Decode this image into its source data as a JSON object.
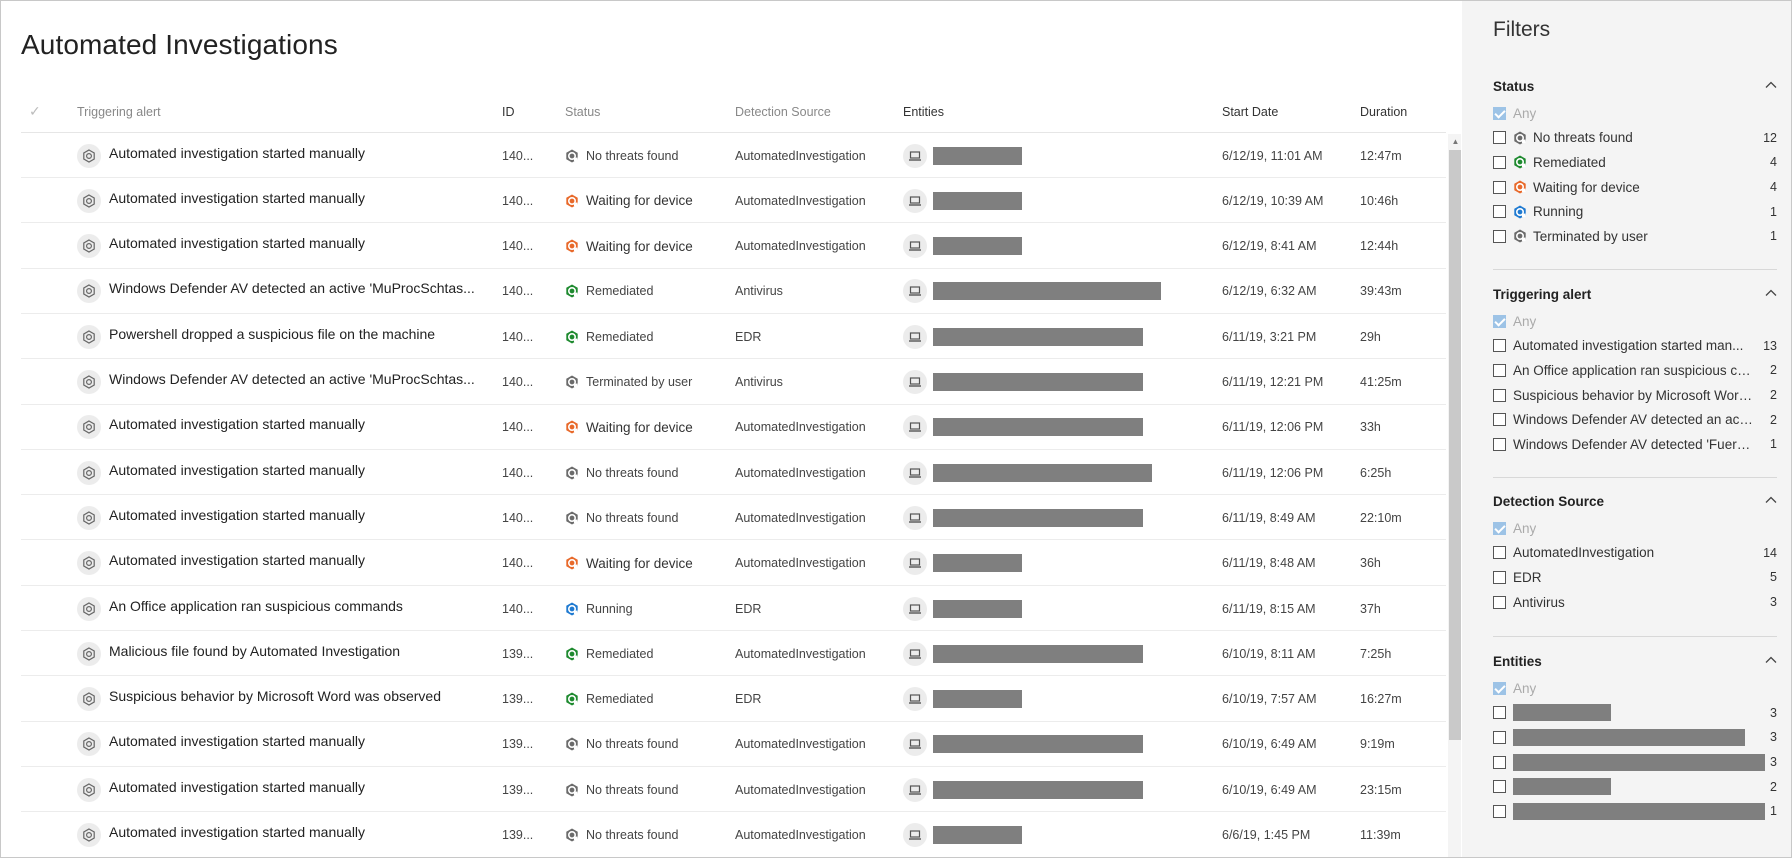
{
  "page": {
    "title": "Automated Investigations"
  },
  "colors": {
    "no_threats": "#6b6b6b",
    "waiting": "#e8692a",
    "remediated": "#1e8a2f",
    "running": "#1f7ad1",
    "terminated": "#6b6b6b",
    "redaction": "#7f7f7f"
  },
  "table": {
    "columns": {
      "alert": "Triggering alert",
      "id": "ID",
      "status": "Status",
      "source": "Detection Source",
      "entities": "Entities",
      "start": "Start Date",
      "duration": "Duration"
    },
    "rows": [
      {
        "alert": "Automated investigation started manually",
        "id": "140...",
        "status": "No threats found",
        "status_icon": "no-threats",
        "source": "AutomatedInvestigation",
        "entity_redacted_fraction": 0.39,
        "start": "6/12/19, 11:01 AM",
        "duration": "12:47m"
      },
      {
        "alert": "Automated investigation started manually",
        "id": "140...",
        "status": "Waiting for device",
        "status_icon": "waiting",
        "source": "AutomatedInvestigation",
        "entity_redacted_fraction": 0.39,
        "start": "6/12/19, 10:39 AM",
        "duration": "10:46h"
      },
      {
        "alert": "Automated investigation started manually",
        "id": "140...",
        "status": "Waiting for device",
        "status_icon": "waiting",
        "source": "AutomatedInvestigation",
        "entity_redacted_fraction": 0.39,
        "start": "6/12/19, 8:41 AM",
        "duration": "12:44h"
      },
      {
        "alert": "Windows Defender AV detected an active 'MuProcSchtas...",
        "id": "140...",
        "status": "Remediated",
        "status_icon": "remediated",
        "source": "Antivirus",
        "entity_redacted_fraction": 1.0,
        "start": "6/12/19, 6:32 AM",
        "duration": "39:43m"
      },
      {
        "alert": "Powershell dropped a suspicious file on the machine",
        "id": "140...",
        "status": "Remediated",
        "status_icon": "remediated",
        "source": "EDR",
        "entity_redacted_fraction": 0.92,
        "start": "6/11/19, 3:21 PM",
        "duration": "29h"
      },
      {
        "alert": "Windows Defender AV detected an active 'MuProcSchtas...",
        "id": "140...",
        "status": "Terminated by user",
        "status_icon": "terminated",
        "source": "Antivirus",
        "entity_redacted_fraction": 0.92,
        "start": "6/11/19, 12:21 PM",
        "duration": "41:25m"
      },
      {
        "alert": "Automated investigation started manually",
        "id": "140...",
        "status": "Waiting for device",
        "status_icon": "waiting",
        "source": "AutomatedInvestigation",
        "entity_redacted_fraction": 0.92,
        "start": "6/11/19, 12:06 PM",
        "duration": "33h"
      },
      {
        "alert": "Automated investigation started manually",
        "id": "140...",
        "status": "No threats found",
        "status_icon": "no-threats",
        "source": "AutomatedInvestigation",
        "entity_redacted_fraction": 0.96,
        "start": "6/11/19, 12:06 PM",
        "duration": "6:25h"
      },
      {
        "alert": "Automated investigation started manually",
        "id": "140...",
        "status": "No threats found",
        "status_icon": "no-threats",
        "source": "AutomatedInvestigation",
        "entity_redacted_fraction": 0.92,
        "start": "6/11/19, 8:49 AM",
        "duration": "22:10m"
      },
      {
        "alert": "Automated investigation started manually",
        "id": "140...",
        "status": "Waiting for device",
        "status_icon": "waiting",
        "source": "AutomatedInvestigation",
        "entity_redacted_fraction": 0.39,
        "start": "6/11/19, 8:48 AM",
        "duration": "36h"
      },
      {
        "alert": "An Office application ran suspicious commands",
        "id": "140...",
        "status": "Running",
        "status_icon": "running",
        "source": "EDR",
        "entity_redacted_fraction": 0.39,
        "start": "6/11/19, 8:15 AM",
        "duration": "37h"
      },
      {
        "alert": "Malicious file found by Automated Investigation",
        "id": "139...",
        "status": "Remediated",
        "status_icon": "remediated",
        "source": "AutomatedInvestigation",
        "entity_redacted_fraction": 0.92,
        "start": "6/10/19, 8:11 AM",
        "duration": "7:25h"
      },
      {
        "alert": "Suspicious behavior by Microsoft Word was observed",
        "id": "139...",
        "status": "Remediated",
        "status_icon": "remediated",
        "source": "EDR",
        "entity_redacted_fraction": 0.39,
        "start": "6/10/19, 7:57 AM",
        "duration": "16:27m"
      },
      {
        "alert": "Automated investigation started manually",
        "id": "139...",
        "status": "No threats found",
        "status_icon": "no-threats",
        "source": "AutomatedInvestigation",
        "entity_redacted_fraction": 0.92,
        "start": "6/10/19, 6:49 AM",
        "duration": "9:19m"
      },
      {
        "alert": "Automated investigation started manually",
        "id": "139...",
        "status": "No threats found",
        "status_icon": "no-threats",
        "source": "AutomatedInvestigation",
        "entity_redacted_fraction": 0.92,
        "start": "6/10/19, 6:49 AM",
        "duration": "23:15m"
      },
      {
        "alert": "Automated investigation started manually",
        "id": "139...",
        "status": "No threats found",
        "status_icon": "no-threats",
        "source": "AutomatedInvestigation",
        "entity_redacted_fraction": 0.39,
        "start": "6/6/19, 1:45 PM",
        "duration": "11:39m"
      }
    ]
  },
  "filters": {
    "title": "Filters",
    "sections": [
      {
        "key": "status",
        "title": "Status",
        "any_label": "Any",
        "items": [
          {
            "label": "No threats found",
            "count": "12",
            "icon": "no-threats"
          },
          {
            "label": "Remediated",
            "count": "4",
            "icon": "remediated"
          },
          {
            "label": "Waiting for device",
            "count": "4",
            "icon": "waiting"
          },
          {
            "label": "Running",
            "count": "1",
            "icon": "running"
          },
          {
            "label": "Terminated by user",
            "count": "1",
            "icon": "terminated"
          }
        ]
      },
      {
        "key": "alert",
        "title": "Triggering alert",
        "any_label": "Any",
        "items": [
          {
            "label": "Automated investigation started man...",
            "count": "13"
          },
          {
            "label": "An Office application ran suspicious co...",
            "count": "2"
          },
          {
            "label": "Suspicious behavior by Microsoft Word...",
            "count": "2"
          },
          {
            "label": "Windows Defender AV detected an acti...",
            "count": "2"
          },
          {
            "label": "Windows Defender AV detected 'Fuery'...",
            "count": "1"
          }
        ]
      },
      {
        "key": "source",
        "title": "Detection Source",
        "any_label": "Any",
        "items": [
          {
            "label": "AutomatedInvestigation",
            "count": "14"
          },
          {
            "label": "EDR",
            "count": "5"
          },
          {
            "label": "Antivirus",
            "count": "3"
          }
        ]
      },
      {
        "key": "entities",
        "title": "Entities",
        "any_label": "Any",
        "items": [
          {
            "redacted_fraction": 0.39,
            "count": "3"
          },
          {
            "redacted_fraction": 0.92,
            "count": "3"
          },
          {
            "redacted_fraction": 1.0,
            "count": "3"
          },
          {
            "redacted_fraction": 0.39,
            "count": "2"
          },
          {
            "redacted_fraction": 1.0,
            "count": "1"
          }
        ]
      }
    ]
  }
}
